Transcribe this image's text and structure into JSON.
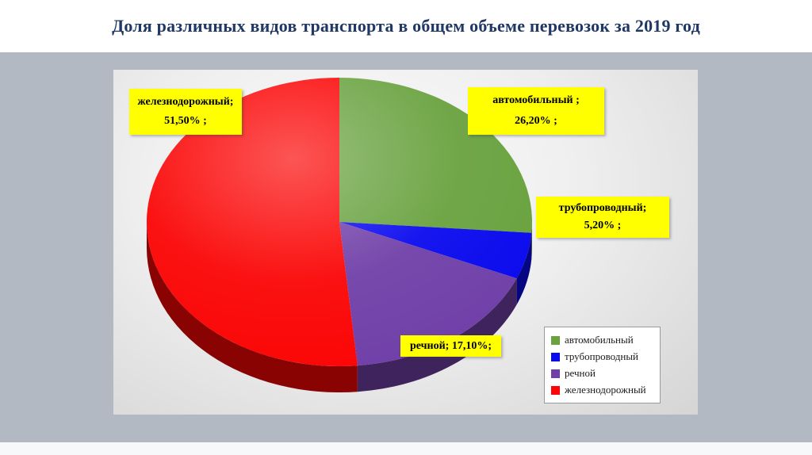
{
  "slide": {
    "title": "Доля различных видов транспорта в общем объеме перевозок за 2019 год"
  },
  "chart_data": {
    "type": "pie",
    "title": "Доля различных видов транспорта в общем объеме перевозок за 2019 год",
    "style": "3d-pie",
    "start_angle_deg": 0,
    "direction": "clockwise",
    "legend_position": "bottom-right",
    "segments": [
      {
        "key": "road",
        "label": "автомобильный",
        "value": 26.2,
        "color": "#69a23f"
      },
      {
        "key": "pipeline",
        "label": "трубопроводный",
        "value": 5.2,
        "color": "#0a0aee"
      },
      {
        "key": "river",
        "label": "речной",
        "value": 17.1,
        "color": "#7040a8"
      },
      {
        "key": "railway",
        "label": "железнодорожный",
        "value": 51.5,
        "color": "#fb0505"
      }
    ],
    "callouts": {
      "railway": {
        "line1": "железнодорожный;",
        "line2": "51,50% ;"
      },
      "road": {
        "line1": "автомобильный ;",
        "line2": "26,20% ;"
      },
      "pipeline": {
        "line1": "трубопроводный;",
        "line2": "5,20% ;"
      },
      "river": {
        "line1": "речной; 17,10%;"
      }
    }
  }
}
